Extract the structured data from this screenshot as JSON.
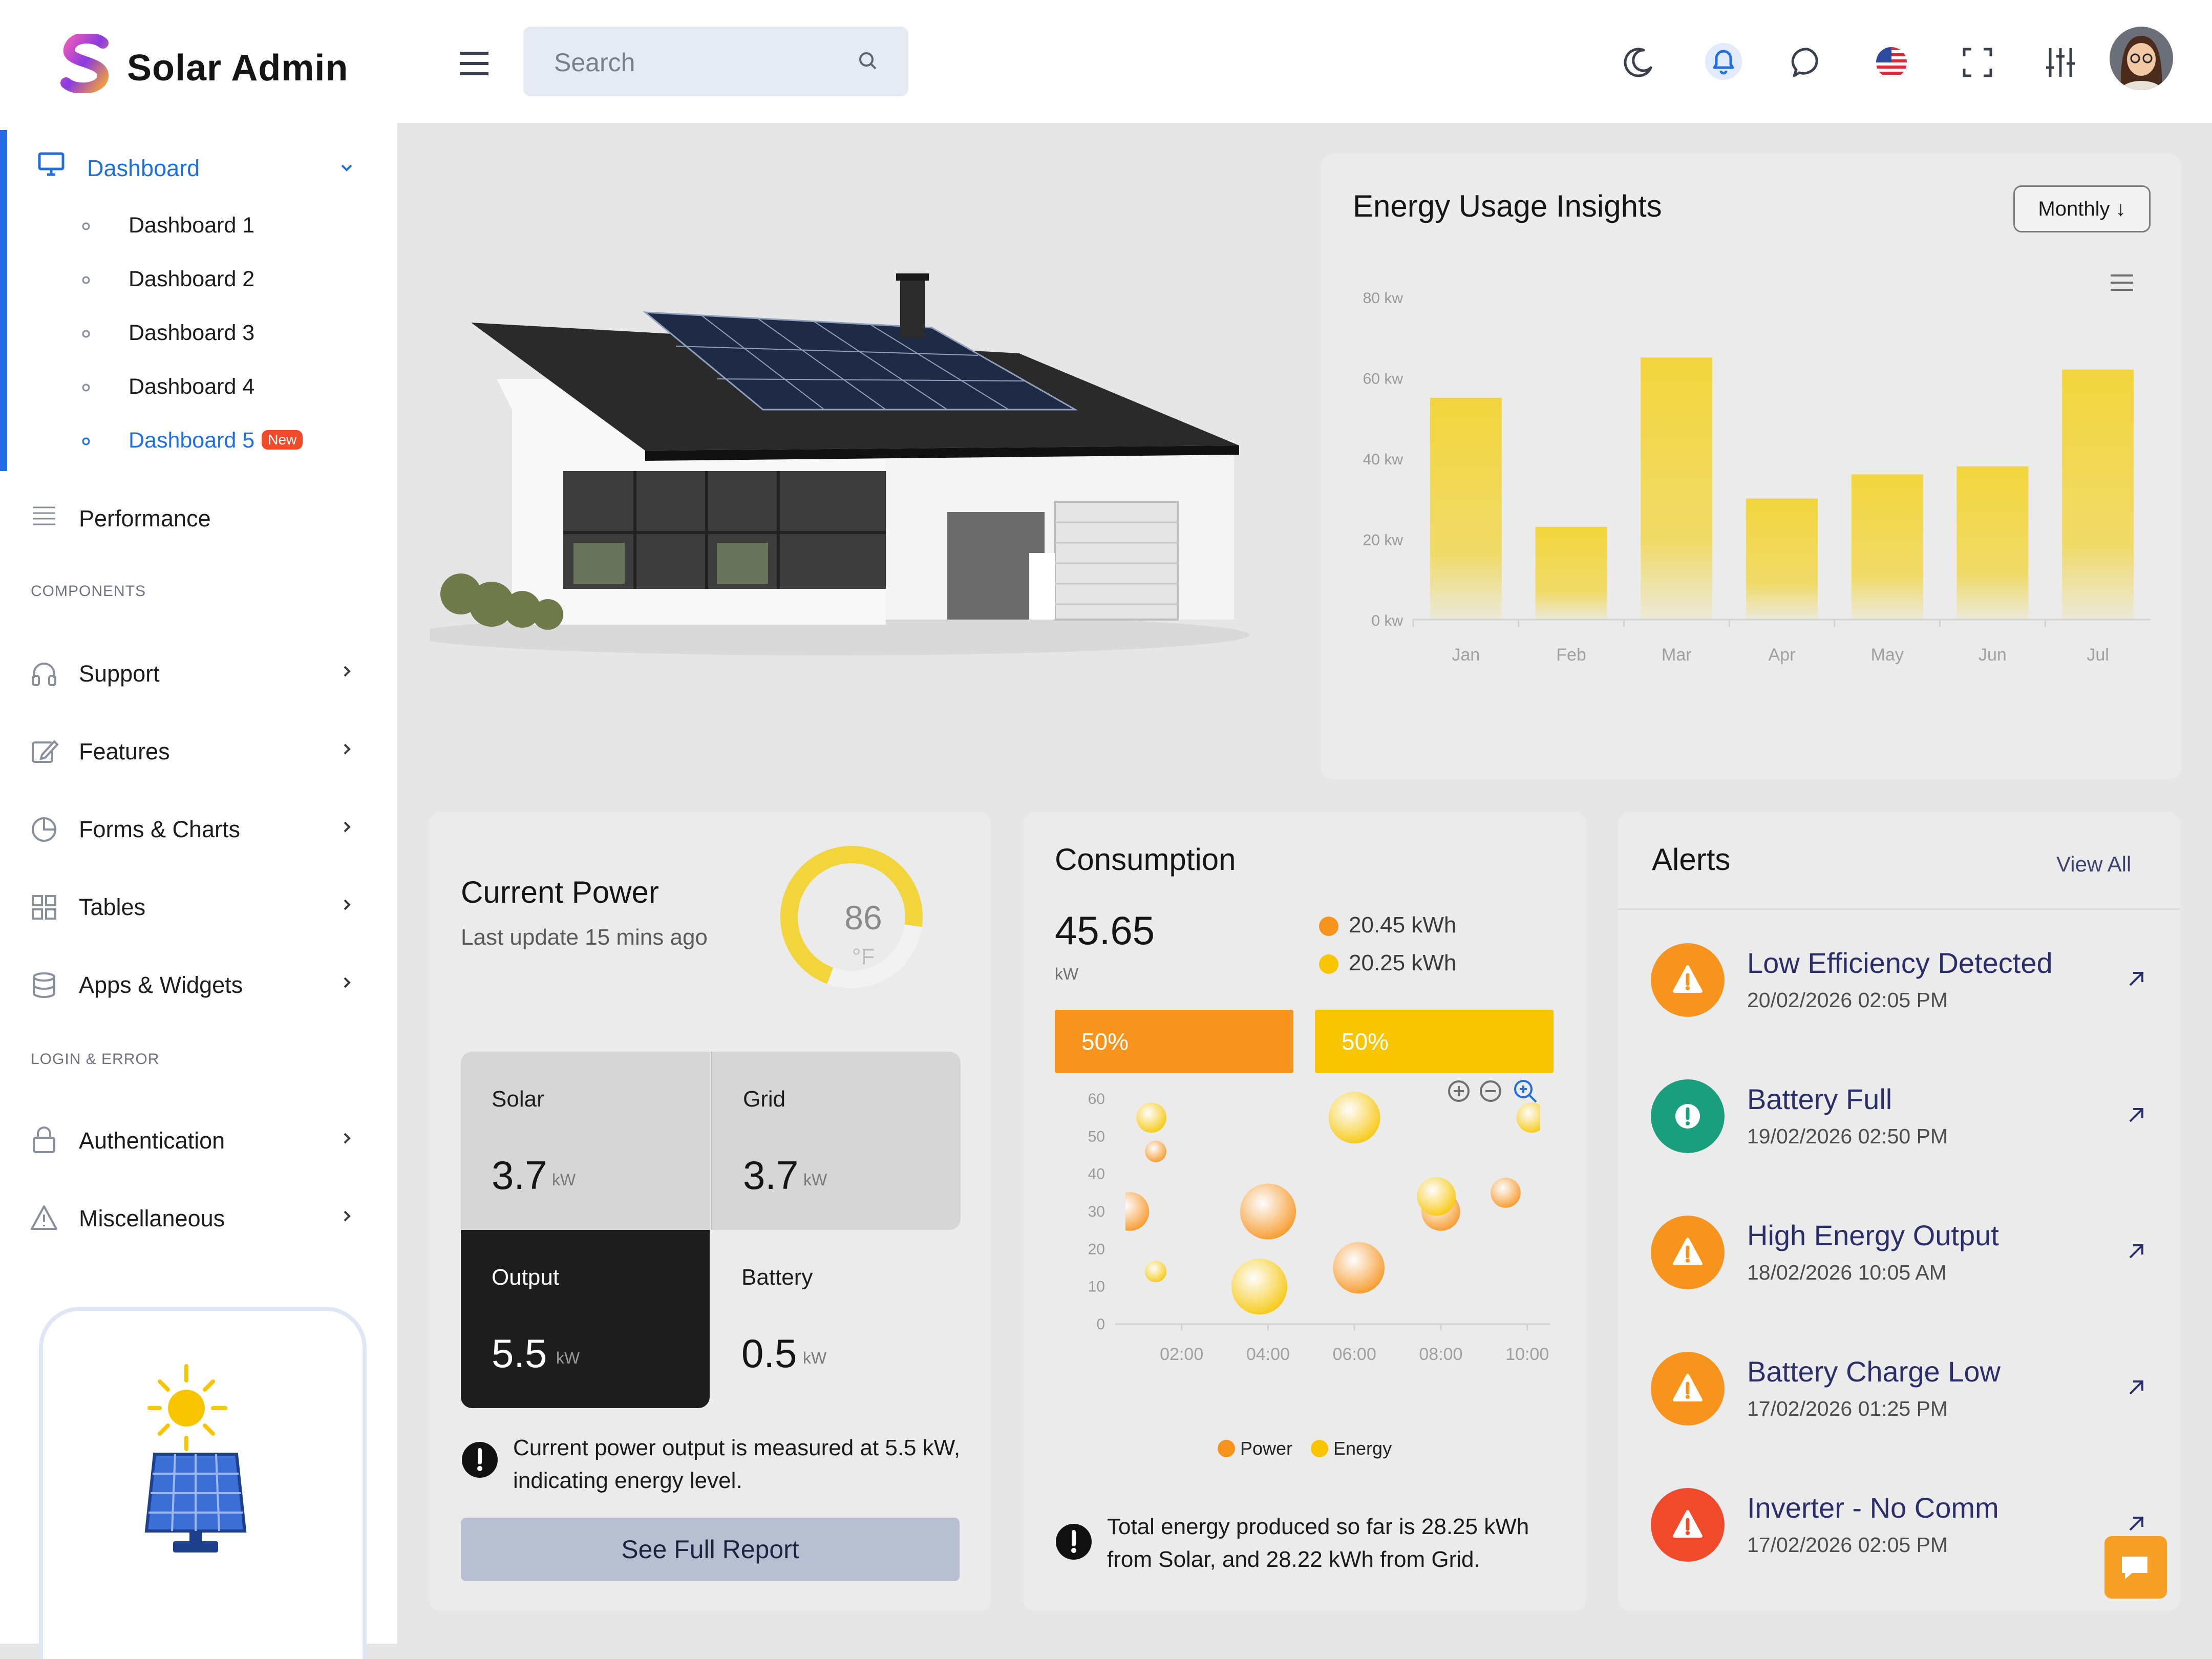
{
  "app": {
    "name": "Solar Admin"
  },
  "colors": {
    "accent": "#1f6fe0",
    "orange": "#f7941d",
    "yellow": "#f7c600",
    "new_badge": "#f04a2a",
    "success": "#1a9e7e",
    "danger": "#f04a2a"
  },
  "sidebar": {
    "dashboard": {
      "label": "Dashboard",
      "icon": "monitor-icon"
    },
    "dashboards": [
      {
        "label": "Dashboard 1"
      },
      {
        "label": "Dashboard 2"
      },
      {
        "label": "Dashboard 3"
      },
      {
        "label": "Dashboard 4"
      },
      {
        "label": "Dashboard 5",
        "badge": "New",
        "active": true
      }
    ],
    "performance": {
      "label": "Performance",
      "icon": "lines-icon"
    },
    "section_components": "COMPONENTS",
    "components": [
      {
        "label": "Support",
        "icon": "headphones-icon"
      },
      {
        "label": "Features",
        "icon": "edit-icon"
      },
      {
        "label": "Forms & Charts",
        "icon": "pie-chart-icon"
      },
      {
        "label": "Tables",
        "icon": "grid-icon"
      },
      {
        "label": "Apps & Widgets",
        "icon": "database-icon"
      }
    ],
    "section_login": "LOGIN & ERROR",
    "login": [
      {
        "label": "Authentication",
        "icon": "lock-icon"
      },
      {
        "label": "Miscellaneous",
        "icon": "warning-icon"
      }
    ]
  },
  "topbar": {
    "search_placeholder": "Search",
    "icons": [
      "moon-icon",
      "bell-icon",
      "chat-icon",
      "us-flag-icon",
      "fullscreen-icon",
      "sliders-icon"
    ]
  },
  "energy": {
    "title": "Energy Usage Insights",
    "period_button": "Monthly",
    "chart_data": {
      "type": "bar",
      "categories": [
        "Jan",
        "Feb",
        "Mar",
        "Apr",
        "May",
        "Jun",
        "Jul"
      ],
      "values": [
        55,
        23,
        65,
        30,
        36,
        38,
        62
      ],
      "y_ticks": [
        "0 kw",
        "20 kw",
        "40 kw",
        "60 kw",
        "80 kw"
      ],
      "ylim": [
        0,
        80
      ],
      "grid": false,
      "bar_color": "#f2d53c"
    }
  },
  "current_power": {
    "title": "Current Power",
    "subtitle": "Last update 15 mins ago",
    "gauge_value": "86",
    "gauge_unit": "°F",
    "gauge_level": 0.86,
    "tiles": [
      {
        "label": "Solar",
        "value": "3.7",
        "unit": "kW"
      },
      {
        "label": "Grid",
        "value": "3.7",
        "unit": "kW"
      },
      {
        "label": "Output",
        "value": "5.5",
        "unit": "kW"
      },
      {
        "label": "Battery",
        "value": "0.5",
        "unit": "kW"
      }
    ],
    "note": "Current power output is measured at 5.5 kW, indicating energy level.",
    "button": "See Full Report"
  },
  "consumption": {
    "title": "Consumption",
    "total": "45.65",
    "total_unit": "kW",
    "legend": [
      {
        "value": "20.45 kWh",
        "color": "#f7941d"
      },
      {
        "value": "20.25 kWh",
        "color": "#f7c600"
      }
    ],
    "split": [
      {
        "label": "50%",
        "color": "#f7941d"
      },
      {
        "label": "50%",
        "color": "#f7c600"
      }
    ],
    "chart_data": {
      "type": "scatter",
      "x_ticks": [
        "02:00",
        "04:00",
        "06:00",
        "08:00",
        "10:00"
      ],
      "y_ticks": [
        "0",
        "10",
        "20",
        "30",
        "40",
        "50",
        "60"
      ],
      "ylim": [
        0,
        60
      ],
      "legend_position": "bottom",
      "series": [
        {
          "name": "Power",
          "color": "#f7941d",
          "points": [
            [
              0.8,
              30,
              9
            ],
            [
              1.4,
              46,
              5
            ],
            [
              4.0,
              30,
              13
            ],
            [
              6.1,
              15,
              12
            ],
            [
              8.0,
              30,
              9
            ],
            [
              9.5,
              35,
              7
            ]
          ]
        },
        {
          "name": "Energy",
          "color": "#f7c600",
          "points": [
            [
              1.3,
              55,
              7
            ],
            [
              1.4,
              14,
              5
            ],
            [
              3.8,
              10,
              13
            ],
            [
              6.0,
              55,
              12
            ],
            [
              7.9,
              34,
              9
            ],
            [
              10.1,
              55,
              7
            ]
          ]
        }
      ]
    },
    "note": "Total energy produced so far is 28.25 kWh from Solar, and 28.22 kWh from Grid."
  },
  "alerts": {
    "title": "Alerts",
    "view_all": "View All",
    "items": [
      {
        "title": "Low Efficiency Detected",
        "time": "20/02/2026 02:05 PM",
        "color": "#f7941d",
        "icon": "warning-icon"
      },
      {
        "title": "Battery Full",
        "time": "19/02/2026 02:50 PM",
        "color": "#1a9e7e",
        "icon": "info-icon"
      },
      {
        "title": "High Energy Output",
        "time": "18/02/2026 10:05 AM",
        "color": "#f7941d",
        "icon": "warning-icon"
      },
      {
        "title": "Battery Charge Low",
        "time": "17/02/2026 01:25 PM",
        "color": "#f7941d",
        "icon": "warning-icon"
      },
      {
        "title": "Inverter - No Comm",
        "time": "17/02/2026 02:05 PM",
        "color": "#f04a2a",
        "icon": "warning-icon"
      }
    ]
  }
}
